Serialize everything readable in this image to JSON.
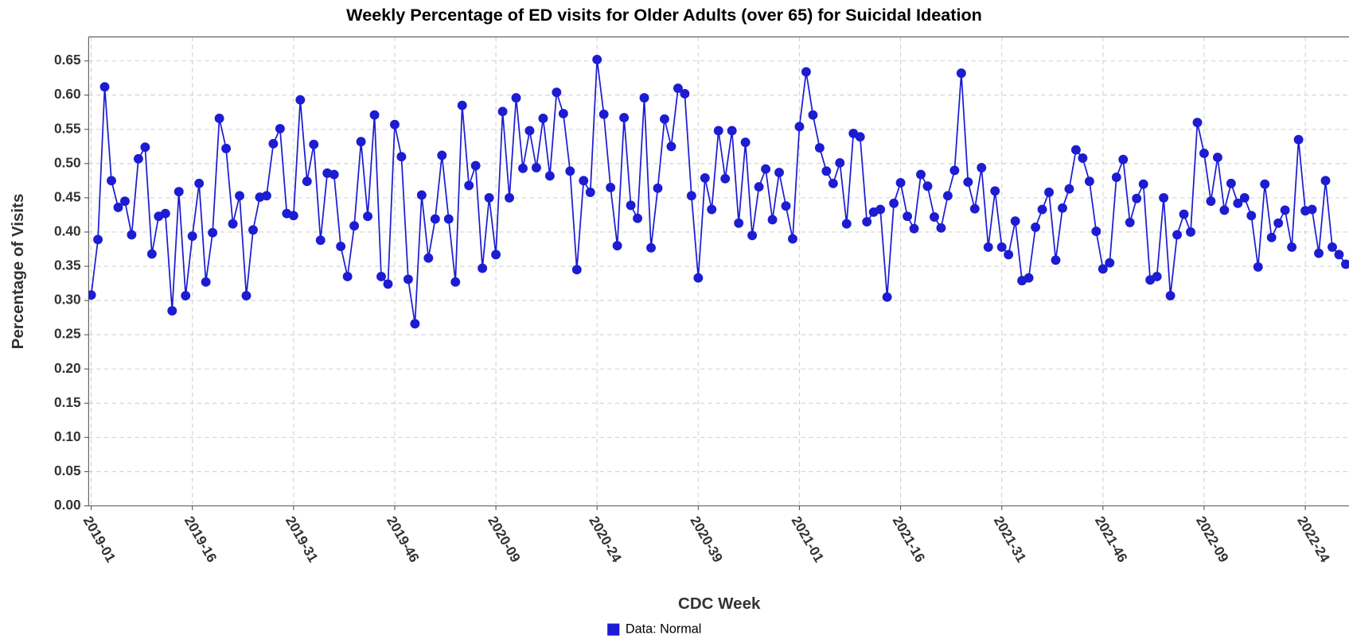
{
  "chart_data": {
    "type": "line",
    "title": "Weekly Percentage of ED visits for Older Adults (over 65) for Suicidal Ideation",
    "x_label": "CDC Week",
    "y_label": "Percentage of Visits",
    "categories": [
      "2019-01",
      null,
      null,
      null,
      null,
      null,
      null,
      null,
      null,
      null,
      null,
      null,
      null,
      null,
      null,
      "2019-16",
      null,
      null,
      null,
      null,
      null,
      null,
      null,
      null,
      null,
      null,
      null,
      null,
      null,
      null,
      "2019-31",
      null,
      null,
      null,
      null,
      null,
      null,
      null,
      null,
      null,
      null,
      null,
      null,
      null,
      null,
      "2019-46",
      null,
      null,
      null,
      null,
      null,
      null,
      null,
      null,
      null,
      null,
      null,
      null,
      null,
      null,
      "2020-09",
      null,
      null,
      null,
      null,
      null,
      null,
      null,
      null,
      null,
      null,
      null,
      null,
      null,
      null,
      "2020-24",
      null,
      null,
      null,
      null,
      null,
      null,
      null,
      null,
      null,
      null,
      null,
      null,
      null,
      null,
      "2020-39",
      null,
      null,
      null,
      null,
      null,
      null,
      null,
      null,
      null,
      null,
      null,
      null,
      null,
      null,
      "2021-01",
      null,
      null,
      null,
      null,
      null,
      null,
      null,
      null,
      null,
      null,
      null,
      null,
      null,
      null,
      "2021-16",
      null,
      null,
      null,
      null,
      null,
      null,
      null,
      null,
      null,
      null,
      null,
      null,
      null,
      null,
      "2021-31",
      null,
      null,
      null,
      null,
      null,
      null,
      null,
      null,
      null,
      null,
      null,
      null,
      null,
      null,
      "2021-46",
      null,
      null,
      null,
      null,
      null,
      null,
      null,
      null,
      null,
      null,
      null,
      null,
      null,
      null,
      "2022-09",
      null,
      null,
      null,
      null,
      null,
      null,
      null,
      null,
      null,
      null,
      null,
      null,
      null,
      null,
      "2022-24",
      null,
      null,
      null,
      null,
      null,
      null
    ],
    "series": [
      {
        "name": "Data: Normal",
        "color": "#1c1cd2",
        "values": [
          0.308,
          0.389,
          0.612,
          0.475,
          0.436,
          0.445,
          0.396,
          0.507,
          0.524,
          0.368,
          0.423,
          0.427,
          0.285,
          0.459,
          0.307,
          0.394,
          0.471,
          0.327,
          0.399,
          0.566,
          0.522,
          0.412,
          0.453,
          0.307,
          0.403,
          0.451,
          0.453,
          0.529,
          0.551,
          0.427,
          0.424,
          0.593,
          0.474,
          0.528,
          0.388,
          0.486,
          0.484,
          0.379,
          0.335,
          0.409,
          0.532,
          0.423,
          0.571,
          0.335,
          0.324,
          0.557,
          0.51,
          0.331,
          0.266,
          0.454,
          0.362,
          0.419,
          0.512,
          0.419,
          0.327,
          0.585,
          0.468,
          0.497,
          0.347,
          0.45,
          0.367,
          0.576,
          0.45,
          0.596,
          0.493,
          0.548,
          0.494,
          0.566,
          0.482,
          0.604,
          0.573,
          0.489,
          0.345,
          0.475,
          0.458,
          0.652,
          0.572,
          0.465,
          0.38,
          0.567,
          0.439,
          0.42,
          0.596,
          0.377,
          0.464,
          0.565,
          0.525,
          0.61,
          0.602,
          0.453,
          0.333,
          0.479,
          0.433,
          0.548,
          0.478,
          0.548,
          0.413,
          0.531,
          0.395,
          0.466,
          0.492,
          0.418,
          0.487,
          0.438,
          0.39,
          0.554,
          0.634,
          0.571,
          0.523,
          0.489,
          0.471,
          0.501,
          0.412,
          0.544,
          0.539,
          0.415,
          0.429,
          0.433,
          0.305,
          0.442,
          0.472,
          0.423,
          0.405,
          0.484,
          0.467,
          0.422,
          0.406,
          0.453,
          0.49,
          0.632,
          0.473,
          0.434,
          0.494,
          0.378,
          0.46,
          0.378,
          0.367,
          0.416,
          0.329,
          0.333,
          0.407,
          0.433,
          0.458,
          0.359,
          0.435,
          0.463,
          0.52,
          0.508,
          0.474,
          0.401,
          0.346,
          0.355,
          0.48,
          0.506,
          0.414,
          0.449,
          0.47,
          0.33,
          0.335,
          0.45,
          0.307,
          0.396,
          0.426,
          0.4,
          0.56,
          0.515,
          0.445,
          0.509,
          0.432,
          0.471,
          0.442,
          0.45,
          0.424,
          0.349,
          0.47,
          0.392,
          0.413,
          0.432,
          0.378,
          0.535,
          0.431,
          0.433,
          0.369,
          0.475,
          0.378,
          0.367,
          0.353
        ]
      }
    ],
    "ylim": [
      0,
      0.685
    ],
    "yticks": [
      {
        "value": 0,
        "label": "0.00"
      },
      0.05,
      {
        "value": 0.1,
        "label": "0.10"
      },
      0.15,
      {
        "value": 0.2,
        "label": "0.20"
      },
      0.25,
      {
        "value": 0.3,
        "label": "0.30"
      },
      0.35,
      {
        "value": 0.4,
        "label": "0.40"
      },
      0.45,
      {
        "value": 0.5,
        "label": "0.50"
      },
      0.55,
      {
        "value": 0.6,
        "label": "0.60"
      },
      0.65
    ],
    "grid": true,
    "legend": "bottom"
  }
}
